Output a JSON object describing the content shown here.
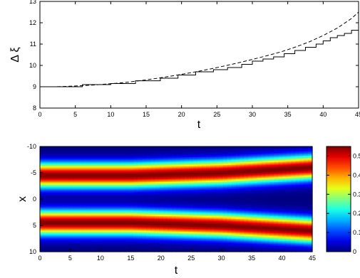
{
  "chart_data": [
    {
      "type": "line",
      "xlabel": "t",
      "ylabel": "Δ ξ",
      "xlim": [
        0,
        45
      ],
      "ylim": [
        8,
        13
      ],
      "x_ticks": [
        "0",
        "5",
        "10",
        "15",
        "20",
        "25",
        "30",
        "35",
        "40",
        "45"
      ],
      "y_ticks": [
        "8",
        "9",
        "10",
        "11",
        "12",
        "13"
      ],
      "grid": false,
      "series": [
        {
          "style": "dashed",
          "x": [
            0,
            2,
            4,
            6,
            8,
            10,
            12,
            14,
            16,
            18,
            20,
            22,
            24,
            26,
            28,
            30,
            32,
            34,
            36,
            38,
            40,
            42,
            44,
            45
          ],
          "y": [
            9.0,
            9.0,
            9.02,
            9.05,
            9.09,
            9.14,
            9.2,
            9.28,
            9.37,
            9.47,
            9.58,
            9.7,
            9.83,
            9.97,
            10.12,
            10.28,
            10.45,
            10.63,
            10.85,
            11.1,
            11.4,
            11.75,
            12.2,
            12.5
          ]
        },
        {
          "style": "solid-step",
          "x": [
            0,
            6,
            10,
            13.5,
            17,
            19.5,
            22,
            24.5,
            26.5,
            28.5,
            30,
            31.5,
            33,
            34.5,
            36,
            37.5,
            39,
            40,
            41,
            42,
            43,
            44,
            45
          ],
          "y": [
            9.0,
            9.1,
            9.15,
            9.28,
            9.4,
            9.55,
            9.7,
            9.8,
            9.9,
            10.05,
            10.2,
            10.3,
            10.4,
            10.55,
            10.7,
            10.85,
            11.0,
            11.15,
            11.3,
            11.4,
            11.5,
            11.65,
            11.75
          ]
        }
      ]
    },
    {
      "type": "heatmap",
      "xlabel": "t",
      "ylabel": "x",
      "xlim": [
        0,
        45
      ],
      "ylim": [
        -10,
        10
      ],
      "x_ticks": [
        "0",
        "5",
        "10",
        "15",
        "20",
        "25",
        "30",
        "35",
        "40",
        "45"
      ],
      "y_ticks": [
        "-10",
        "-5",
        "0",
        "5",
        "10"
      ],
      "y_reversed": true,
      "colormap": "jet",
      "colorbar_ticks": [
        "0",
        "0.1",
        "0.2",
        "0.3",
        "0.4",
        "0.5"
      ],
      "colorbar_tick_values": [
        0,
        0.1,
        0.2,
        0.3,
        0.4,
        0.5
      ],
      "colorbar_range": [
        0,
        0.55
      ],
      "bands": [
        {
          "center_x": [
            -4.5,
            -4.5,
            -5.0,
            -6.0
          ],
          "at_t": [
            0,
            15,
            30,
            45
          ],
          "peak": 0.55
        },
        {
          "center_x": [
            4.5,
            4.5,
            5.0,
            6.0
          ],
          "at_t": [
            0,
            15,
            30,
            45
          ],
          "peak": 0.55
        }
      ]
    }
  ]
}
